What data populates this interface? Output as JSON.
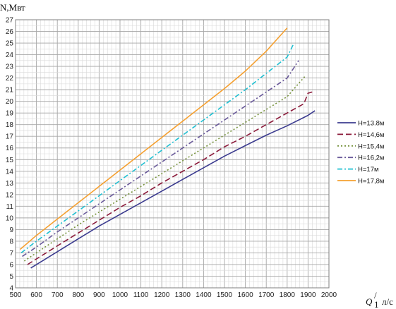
{
  "chart_data": {
    "type": "line",
    "title": "",
    "ylabel": "N,Мвт",
    "xlabel": "Q",
    "xlabel_sup": "/",
    "xlabel_sub": "1",
    "xunit": "л/с",
    "xlim": [
      500,
      2000
    ],
    "ylim": [
      4,
      27
    ],
    "x_major_ticks": [
      500,
      600,
      700,
      800,
      900,
      1000,
      1100,
      1200,
      1300,
      1400,
      1500,
      1600,
      1700,
      1800,
      1900,
      2000
    ],
    "y_major_ticks": [
      4,
      5,
      6,
      7,
      8,
      9,
      10,
      11,
      12,
      13,
      14,
      15,
      16,
      17,
      18,
      19,
      20,
      21,
      22,
      23,
      24,
      25,
      26,
      27
    ],
    "x_minor_step": 20,
    "y_minor_step": 0.5,
    "grid": true,
    "legend_position": "right",
    "series": [
      {
        "name": "H=13.8м",
        "color": "#3b3b8f",
        "dash": "solid",
        "x": [
          573,
          700,
          800,
          900,
          1000,
          1100,
          1200,
          1300,
          1400,
          1500,
          1600,
          1700,
          1800,
          1900,
          1933
        ],
        "y": [
          5.7,
          7.1,
          8.2,
          9.3,
          10.3,
          11.3,
          12.3,
          13.3,
          14.3,
          15.3,
          16.2,
          17.1,
          17.9,
          18.8,
          19.2
        ]
      },
      {
        "name": "H=14,6м",
        "color": "#8b1a3a",
        "dash": "longdash",
        "x": [
          557,
          700,
          800,
          900,
          1000,
          1100,
          1200,
          1300,
          1400,
          1500,
          1600,
          1700,
          1800,
          1880,
          1900,
          1920
        ],
        "y": [
          6.0,
          7.6,
          8.7,
          9.8,
          10.9,
          11.9,
          13.0,
          14.0,
          15.0,
          16.1,
          17.0,
          18.0,
          19.0,
          19.8,
          20.7,
          20.8
        ]
      },
      {
        "name": "H=15,4м",
        "color": "#76923c",
        "dash": "dotted",
        "x": [
          542,
          600,
          700,
          800,
          900,
          1000,
          1100,
          1200,
          1300,
          1400,
          1500,
          1600,
          1700,
          1800,
          1888
        ],
        "y": [
          6.3,
          7.0,
          8.2,
          9.4,
          10.5,
          11.6,
          12.7,
          13.8,
          14.9,
          16.0,
          17.1,
          18.2,
          19.3,
          20.4,
          22.2
        ]
      },
      {
        "name": "H=16,2м",
        "color": "#6a5a9a",
        "dash": "dashdot",
        "x": [
          532,
          600,
          700,
          800,
          900,
          1000,
          1100,
          1200,
          1300,
          1400,
          1500,
          1600,
          1700,
          1800,
          1855
        ],
        "y": [
          6.7,
          7.5,
          8.8,
          10.0,
          11.2,
          12.4,
          13.6,
          14.8,
          16.0,
          17.2,
          18.4,
          19.6,
          20.8,
          22.0,
          23.5
        ]
      },
      {
        "name": "H=17м",
        "color": "#1fbfd1",
        "dash": "dashdot",
        "x": [
          527,
          600,
          700,
          800,
          900,
          1000,
          1100,
          1200,
          1300,
          1400,
          1500,
          1600,
          1700,
          1800,
          1830
        ],
        "y": [
          7.0,
          8.0,
          9.3,
          10.6,
          11.9,
          13.2,
          14.5,
          15.8,
          17.1,
          18.4,
          19.7,
          21.0,
          22.4,
          23.8,
          24.9
        ]
      },
      {
        "name": "H=17,8м",
        "color": "#f5a030",
        "dash": "solid",
        "x": [
          522,
          600,
          700,
          800,
          900,
          1000,
          1100,
          1200,
          1300,
          1400,
          1500,
          1600,
          1700,
          1800
        ],
        "y": [
          7.3,
          8.5,
          9.9,
          11.3,
          12.7,
          14.1,
          15.5,
          16.9,
          18.3,
          19.7,
          21.1,
          22.6,
          24.3,
          26.3
        ]
      }
    ]
  }
}
